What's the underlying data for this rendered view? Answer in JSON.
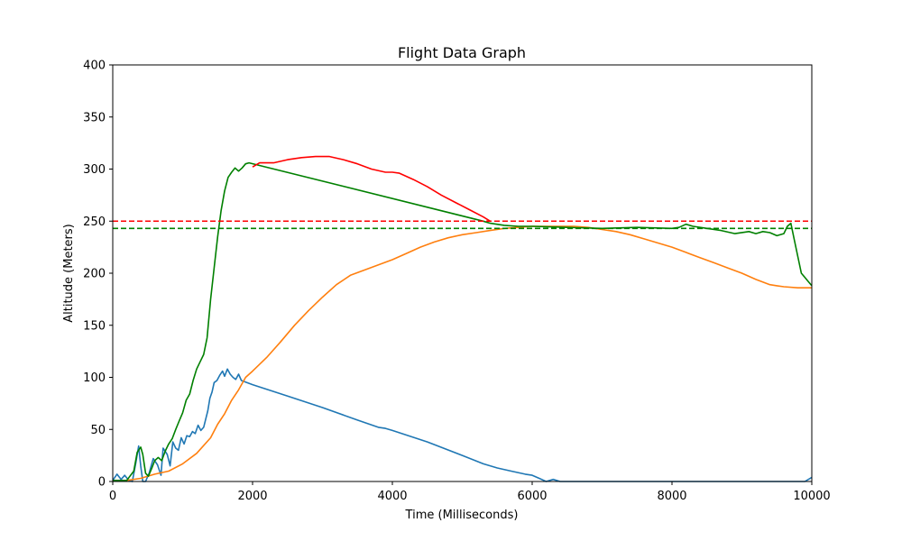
{
  "chart_data": {
    "type": "line",
    "title": "Flight Data Graph",
    "xlabel": "Time (Milliseconds)",
    "ylabel": "Altitude (Meters)",
    "xlim": [
      0,
      10000
    ],
    "ylim": [
      0,
      400
    ],
    "xticks": [
      0,
      2000,
      4000,
      6000,
      8000,
      10000
    ],
    "yticks": [
      0,
      50,
      100,
      150,
      200,
      250,
      300,
      350,
      400
    ],
    "grid": false,
    "legend": "none",
    "series": [
      {
        "color": "#1f77b4",
        "points": [
          [
            0,
            1
          ],
          [
            60,
            7
          ],
          [
            120,
            2
          ],
          [
            170,
            6
          ],
          [
            230,
            1
          ],
          [
            280,
            0
          ],
          [
            330,
            18
          ],
          [
            370,
            34
          ],
          [
            400,
            15
          ],
          [
            430,
            0
          ],
          [
            470,
            0
          ],
          [
            520,
            8
          ],
          [
            580,
            22
          ],
          [
            640,
            16
          ],
          [
            690,
            6
          ],
          [
            720,
            32
          ],
          [
            780,
            26
          ],
          [
            820,
            15
          ],
          [
            860,
            38
          ],
          [
            900,
            32
          ],
          [
            940,
            30
          ],
          [
            980,
            42
          ],
          [
            1020,
            36
          ],
          [
            1060,
            44
          ],
          [
            1100,
            43
          ],
          [
            1140,
            48
          ],
          [
            1180,
            46
          ],
          [
            1220,
            54
          ],
          [
            1260,
            49
          ],
          [
            1300,
            52
          ],
          [
            1330,
            60
          ],
          [
            1360,
            68
          ],
          [
            1390,
            80
          ],
          [
            1420,
            86
          ],
          [
            1450,
            95
          ],
          [
            1490,
            97
          ],
          [
            1530,
            102
          ],
          [
            1570,
            106
          ],
          [
            1600,
            101
          ],
          [
            1640,
            108
          ],
          [
            1680,
            103
          ],
          [
            1720,
            100
          ],
          [
            1760,
            98
          ],
          [
            1800,
            103
          ],
          [
            1840,
            97
          ],
          [
            2000,
            93
          ],
          [
            2500,
            82
          ],
          [
            3000,
            71
          ],
          [
            3500,
            59
          ],
          [
            3800,
            52
          ],
          [
            3900,
            51
          ],
          [
            4000,
            49
          ],
          [
            4500,
            38
          ],
          [
            5000,
            25
          ],
          [
            5300,
            17
          ],
          [
            5500,
            13
          ],
          [
            5700,
            10
          ],
          [
            5900,
            7
          ],
          [
            6000,
            6
          ],
          [
            6100,
            3
          ],
          [
            6200,
            0
          ],
          [
            6300,
            2
          ],
          [
            6400,
            0
          ],
          [
            9900,
            0
          ],
          [
            10000,
            4
          ]
        ]
      },
      {
        "color": "#ff7f0e",
        "points": [
          [
            0,
            1
          ],
          [
            200,
            1
          ],
          [
            400,
            3
          ],
          [
            600,
            7
          ],
          [
            800,
            10
          ],
          [
            1000,
            17
          ],
          [
            1200,
            27
          ],
          [
            1400,
            42
          ],
          [
            1500,
            55
          ],
          [
            1600,
            65
          ],
          [
            1700,
            78
          ],
          [
            1800,
            88
          ],
          [
            1900,
            100
          ],
          [
            2000,
            106
          ],
          [
            2200,
            119
          ],
          [
            2400,
            134
          ],
          [
            2600,
            150
          ],
          [
            2800,
            164
          ],
          [
            3000,
            177
          ],
          [
            3200,
            189
          ],
          [
            3400,
            198
          ],
          [
            3600,
            203
          ],
          [
            3800,
            208
          ],
          [
            4000,
            213
          ],
          [
            4200,
            219
          ],
          [
            4400,
            225
          ],
          [
            4600,
            230
          ],
          [
            4800,
            234
          ],
          [
            5000,
            237
          ],
          [
            5200,
            239
          ],
          [
            5400,
            241
          ],
          [
            5600,
            243
          ],
          [
            5800,
            244
          ],
          [
            6000,
            245
          ],
          [
            6200,
            245
          ],
          [
            6400,
            245
          ],
          [
            6600,
            245
          ],
          [
            6800,
            244
          ],
          [
            7000,
            242
          ],
          [
            7200,
            240
          ],
          [
            7400,
            237
          ],
          [
            7600,
            233
          ],
          [
            7800,
            229
          ],
          [
            8000,
            225
          ],
          [
            8200,
            220
          ],
          [
            8400,
            215
          ],
          [
            8600,
            210
          ],
          [
            8800,
            205
          ],
          [
            9000,
            200
          ],
          [
            9200,
            194
          ],
          [
            9400,
            189
          ],
          [
            9500,
            188
          ],
          [
            9600,
            187
          ],
          [
            9800,
            186
          ],
          [
            10000,
            186
          ]
        ]
      },
      {
        "color": "#008000",
        "points": [
          [
            0,
            1
          ],
          [
            200,
            1
          ],
          [
            300,
            10
          ],
          [
            350,
            28
          ],
          [
            400,
            33
          ],
          [
            430,
            26
          ],
          [
            470,
            8
          ],
          [
            510,
            5
          ],
          [
            560,
            13
          ],
          [
            600,
            20
          ],
          [
            650,
            23
          ],
          [
            700,
            20
          ],
          [
            750,
            29
          ],
          [
            800,
            36
          ],
          [
            850,
            41
          ],
          [
            900,
            50
          ],
          [
            950,
            58
          ],
          [
            1000,
            66
          ],
          [
            1050,
            78
          ],
          [
            1100,
            84
          ],
          [
            1150,
            97
          ],
          [
            1200,
            108
          ],
          [
            1250,
            115
          ],
          [
            1300,
            122
          ],
          [
            1350,
            138
          ],
          [
            1400,
            175
          ],
          [
            1450,
            205
          ],
          [
            1500,
            235
          ],
          [
            1550,
            260
          ],
          [
            1600,
            279
          ],
          [
            1650,
            292
          ],
          [
            1700,
            297
          ],
          [
            1750,
            301
          ],
          [
            1800,
            298
          ],
          [
            1850,
            301
          ],
          [
            1900,
            305
          ],
          [
            1950,
            306
          ],
          [
            5300,
            250
          ],
          [
            5400,
            248
          ],
          [
            5600,
            246
          ],
          [
            5800,
            245
          ],
          [
            6000,
            245
          ],
          [
            6500,
            244
          ],
          [
            7000,
            243
          ],
          [
            7500,
            244
          ],
          [
            8000,
            243
          ],
          [
            8100,
            244
          ],
          [
            8200,
            247
          ],
          [
            8300,
            245
          ],
          [
            8500,
            243
          ],
          [
            8700,
            241
          ],
          [
            8900,
            238
          ],
          [
            9100,
            240
          ],
          [
            9200,
            238
          ],
          [
            9300,
            240
          ],
          [
            9400,
            239
          ],
          [
            9500,
            236
          ],
          [
            9600,
            238
          ],
          [
            9650,
            245
          ],
          [
            9700,
            248
          ],
          [
            9750,
            232
          ],
          [
            9800,
            216
          ],
          [
            9850,
            200
          ],
          [
            9900,
            196
          ],
          [
            9950,
            192
          ],
          [
            10000,
            188
          ]
        ]
      },
      {
        "color": "#ff0000",
        "points": [
          [
            2000,
            302
          ],
          [
            2100,
            306
          ],
          [
            2300,
            306
          ],
          [
            2500,
            309
          ],
          [
            2700,
            311
          ],
          [
            2900,
            312
          ],
          [
            3100,
            312
          ],
          [
            3300,
            309
          ],
          [
            3500,
            305
          ],
          [
            3700,
            300
          ],
          [
            3900,
            297
          ],
          [
            4000,
            297
          ],
          [
            4100,
            296
          ],
          [
            4300,
            290
          ],
          [
            4500,
            283
          ],
          [
            4700,
            275
          ],
          [
            4900,
            268
          ],
          [
            5100,
            261
          ],
          [
            5300,
            254
          ],
          [
            5400,
            250
          ]
        ]
      }
    ],
    "reference_lines": [
      {
        "y": 250,
        "color": "#ff0000",
        "style": "dashed"
      },
      {
        "y": 243,
        "color": "#008000",
        "style": "dashed"
      }
    ]
  }
}
